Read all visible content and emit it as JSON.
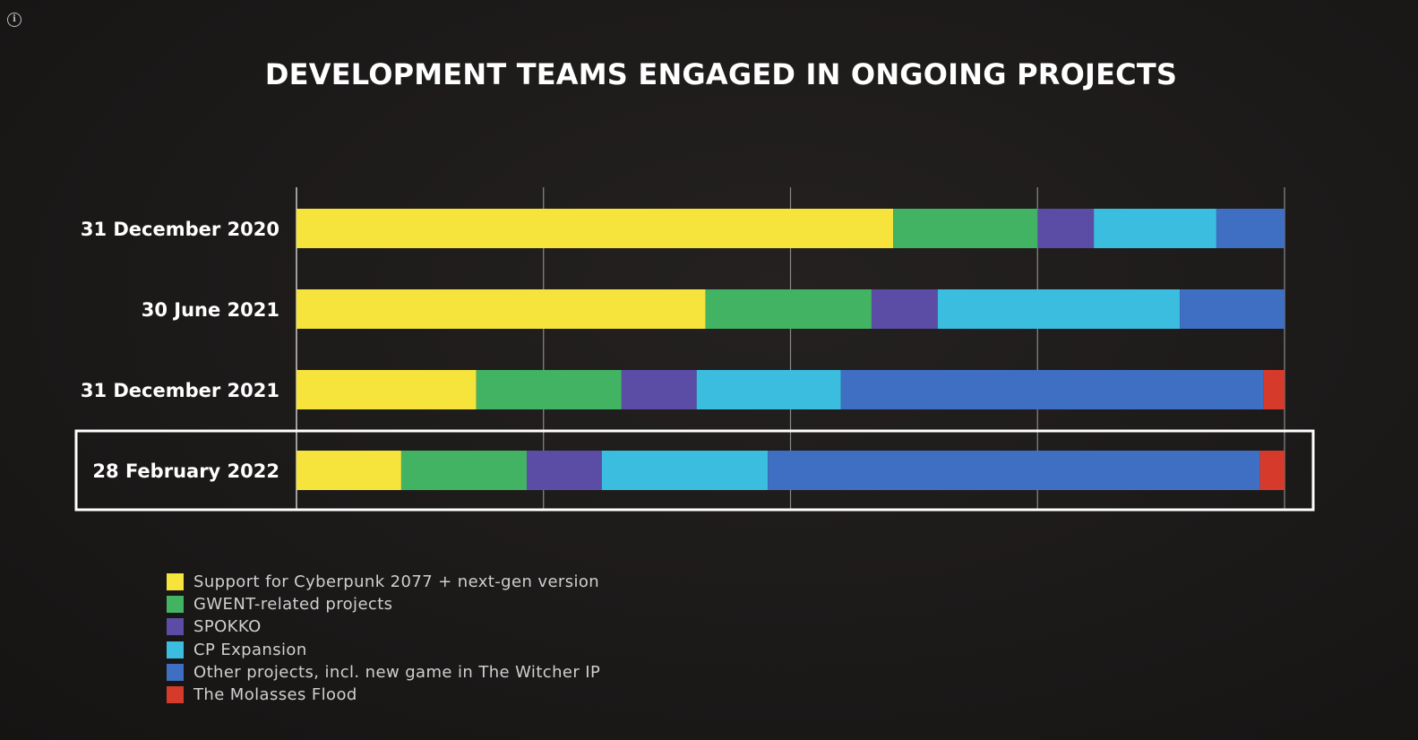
{
  "info_icon": "info-icon",
  "chart_data": {
    "type": "bar",
    "orientation": "horizontal",
    "stacked": true,
    "title": "DEVELOPMENT TEAMS ENGAGED IN ONGOING PROJECTS",
    "categories": [
      "31 December 2020",
      "30 June 2021",
      "31 December 2021",
      "28 February 2022"
    ],
    "highlighted_category": "28 February 2022",
    "series": [
      {
        "name": "Support for Cyberpunk 2077 + next-gen version",
        "color": "#f6e43c",
        "values": [
          60.4,
          41.4,
          18.2,
          10.6
        ]
      },
      {
        "name": "GWENT-related projects",
        "color": "#42b363",
        "values": [
          14.6,
          16.8,
          14.7,
          12.7
        ]
      },
      {
        "name": "SPOKKO",
        "color": "#5b4ca6",
        "values": [
          5.7,
          6.7,
          7.6,
          7.6
        ]
      },
      {
        "name": "CP Expansion",
        "color": "#3bbde0",
        "values": [
          12.4,
          24.5,
          14.6,
          16.8
        ]
      },
      {
        "name": "Other projects, incl. new game in The Witcher IP",
        "color": "#3f6fc2",
        "values": [
          6.9,
          10.6,
          42.8,
          49.8
        ]
      },
      {
        "name": "The Molasses Flood",
        "color": "#d63a2b",
        "values": [
          0,
          0,
          2.1,
          2.5
        ]
      }
    ],
    "xlim": [
      0,
      100
    ],
    "grid": true,
    "legend_position": "bottom-left"
  }
}
